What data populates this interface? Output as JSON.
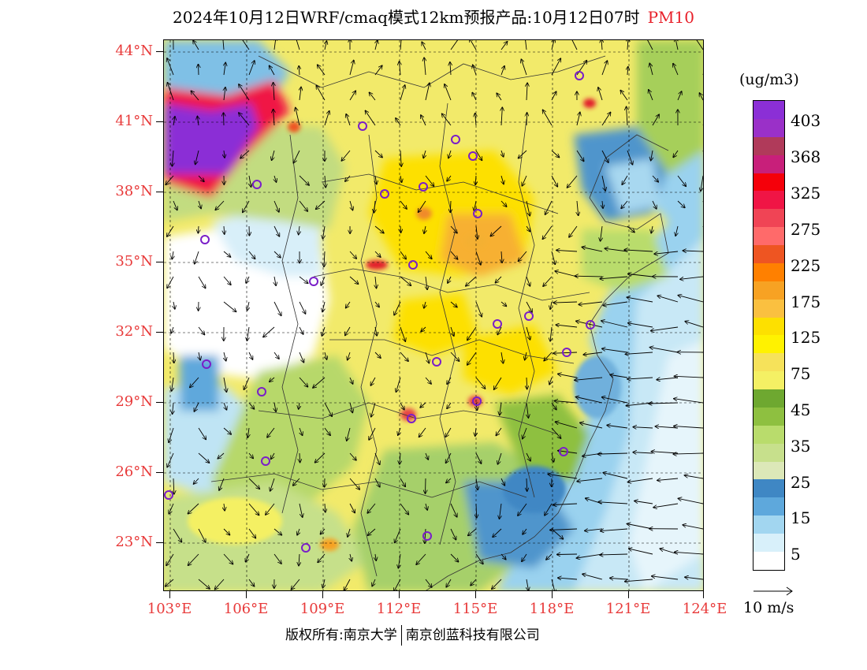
{
  "title": {
    "main": "2024年10月12日WRF/cmaq模式12km预报产品:10月12日07时",
    "pollutant": "PM10"
  },
  "axes": {
    "lat_labels": [
      "44°N",
      "41°N",
      "38°N",
      "35°N",
      "32°N",
      "29°N",
      "26°N",
      "23°N"
    ],
    "lon_labels": [
      "103°E",
      "106°E",
      "109°E",
      "112°E",
      "115°E",
      "118°E",
      "121°E",
      "124°E"
    ]
  },
  "legend": {
    "unit": "(ug/m3)",
    "levels": [
      "403",
      "368",
      "325",
      "275",
      "225",
      "175",
      "125",
      "75",
      "45",
      "35",
      "25",
      "15",
      "5"
    ],
    "colors": [
      "#8b2fd6",
      "#9a30c8",
      "#b03a5a",
      "#c81f7a",
      "#f5000a",
      "#f01545",
      "#f04455",
      "#ff6a6a",
      "#ee5522",
      "#ff8000",
      "#f7a223",
      "#fac040",
      "#fde000",
      "#fff200",
      "#f6e25a",
      "#f4f064",
      "#6ea830",
      "#8ec040",
      "#b9dc6c",
      "#c7e08c",
      "#dce8b8",
      "#3f87c4",
      "#5ea8dc",
      "#a2d6f0",
      "#d8f0fa",
      "#ffffff"
    ]
  },
  "wind_reference": {
    "label": "10 m/s"
  },
  "footer": {
    "copyright": "版权所有:南京大学",
    "company": "南京创蓝科技有限公司"
  }
}
